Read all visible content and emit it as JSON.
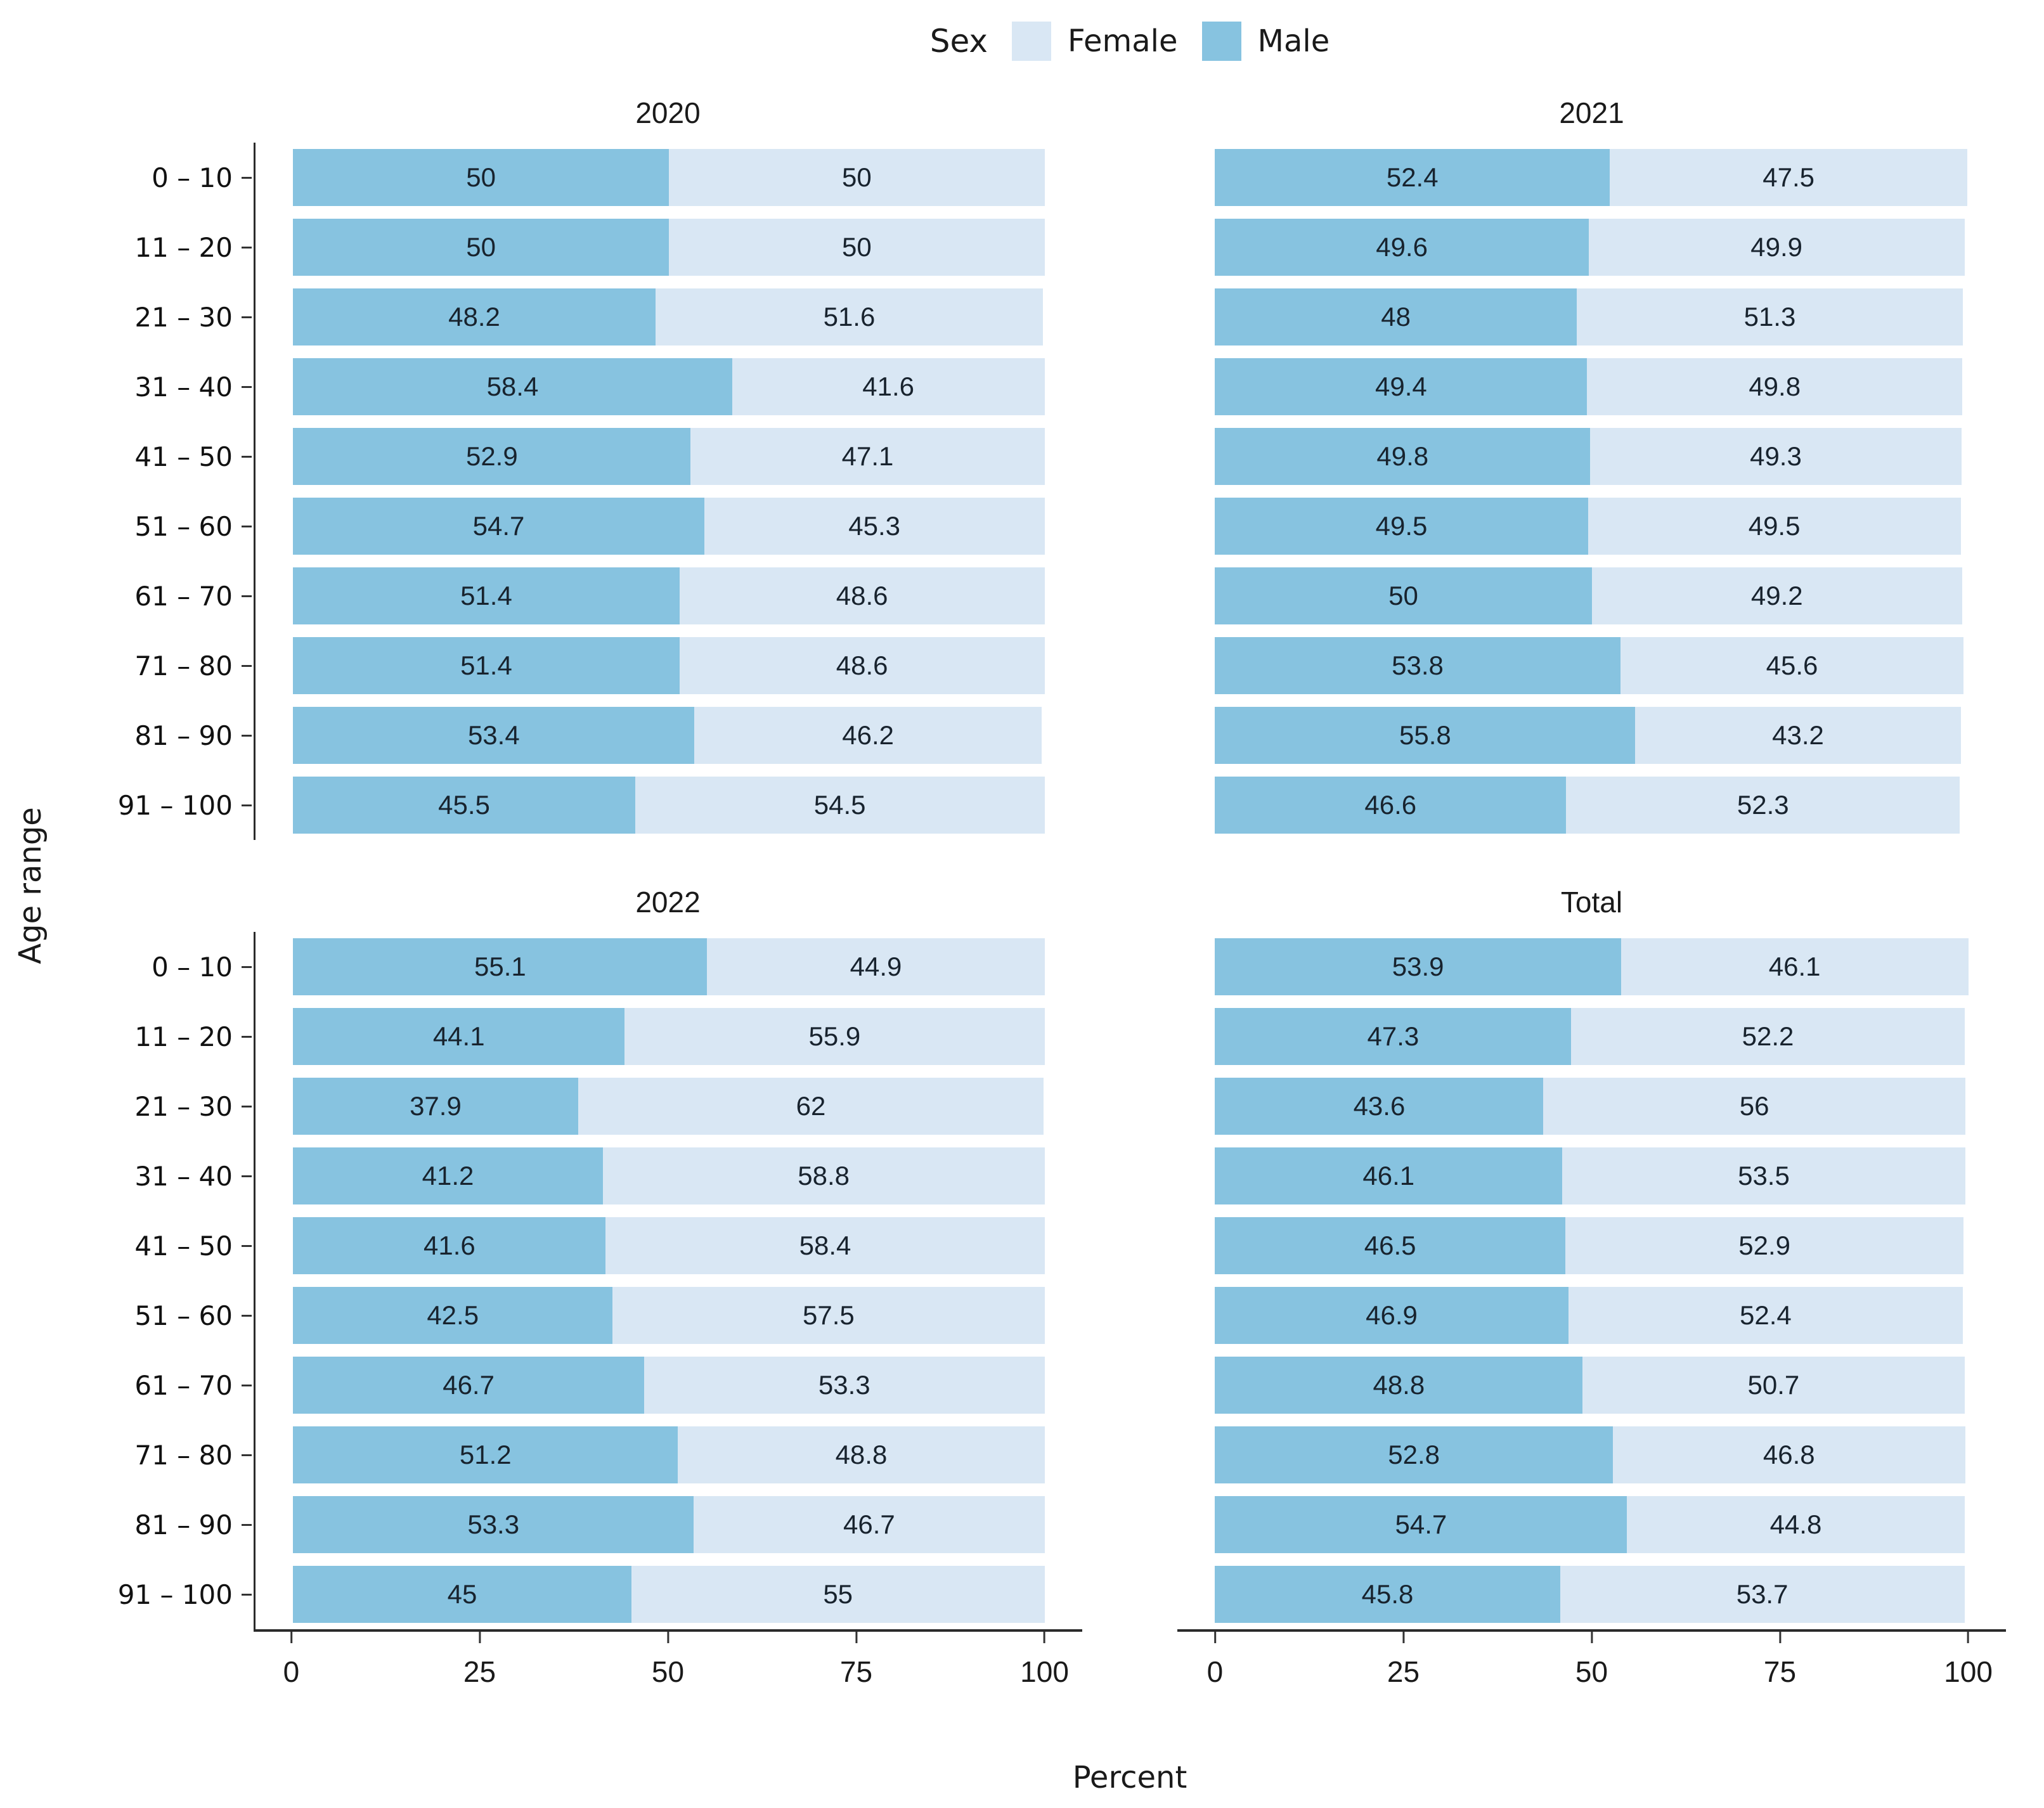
{
  "legend": {
    "title": "Sex",
    "items": [
      {
        "label": "Female",
        "color": "#D9E7F4"
      },
      {
        "label": "Male",
        "color": "#87C3E0"
      }
    ]
  },
  "y_axis_label": "Age range",
  "x_axis_label": "Percent",
  "x_ticks": [
    "0",
    "25",
    "50",
    "75",
    "100"
  ],
  "chart_data": {
    "type": "bar",
    "orientation": "horizontal",
    "stacked": true,
    "legend_position": "top",
    "xlabel": "Percent",
    "ylabel": "Age range",
    "xlim": [
      0,
      100
    ],
    "categories": [
      "0 – 10",
      "11 – 20",
      "21 – 30",
      "31 – 40",
      "41 – 50",
      "51 – 60",
      "61 – 70",
      "71 – 80",
      "81 – 90",
      "91 – 100"
    ],
    "facets": [
      {
        "title": "2020",
        "series": [
          {
            "name": "Male",
            "color": "#87C3E0",
            "values": [
              50,
              50,
              48.2,
              58.4,
              52.9,
              54.7,
              51.4,
              51.4,
              53.4,
              45.5
            ]
          },
          {
            "name": "Female",
            "color": "#D9E7F4",
            "values": [
              50,
              50,
              51.6,
              41.6,
              47.1,
              45.3,
              48.6,
              48.6,
              46.2,
              54.5
            ]
          }
        ]
      },
      {
        "title": "2021",
        "series": [
          {
            "name": "Male",
            "color": "#87C3E0",
            "values": [
              52.4,
              49.6,
              48,
              49.4,
              49.8,
              49.5,
              50,
              53.8,
              55.8,
              46.6
            ]
          },
          {
            "name": "Female",
            "color": "#D9E7F4",
            "values": [
              47.5,
              49.9,
              51.3,
              49.8,
              49.3,
              49.5,
              49.2,
              45.6,
              43.2,
              52.3
            ]
          }
        ]
      },
      {
        "title": "2022",
        "series": [
          {
            "name": "Male",
            "color": "#87C3E0",
            "values": [
              55.1,
              44.1,
              37.9,
              41.2,
              41.6,
              42.5,
              46.7,
              51.2,
              53.3,
              45
            ]
          },
          {
            "name": "Female",
            "color": "#D9E7F4",
            "values": [
              44.9,
              55.9,
              62,
              58.8,
              58.4,
              57.5,
              53.3,
              48.8,
              46.7,
              55
            ]
          }
        ]
      },
      {
        "title": "Total",
        "series": [
          {
            "name": "Male",
            "color": "#87C3E0",
            "values": [
              53.9,
              47.3,
              43.6,
              46.1,
              46.5,
              46.9,
              48.8,
              52.8,
              54.7,
              45.8
            ]
          },
          {
            "name": "Female",
            "color": "#D9E7F4",
            "values": [
              46.1,
              52.2,
              56,
              53.5,
              52.9,
              52.4,
              50.7,
              46.8,
              44.8,
              53.7
            ]
          }
        ]
      }
    ]
  }
}
